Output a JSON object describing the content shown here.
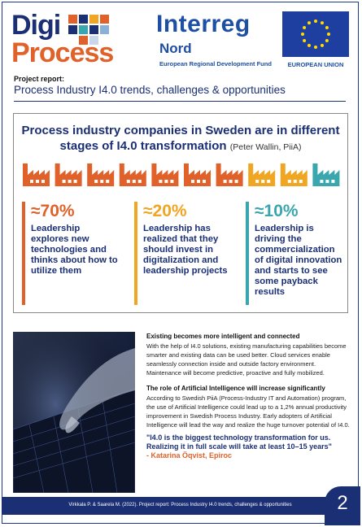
{
  "header": {
    "digi_word1": "Digi",
    "digi_word2": "Process",
    "interreg_word": "Interreg",
    "interreg_region": "Nord",
    "interreg_fund": "European Regional Development Fund",
    "eu_label": "EUROPEAN UNION"
  },
  "project_label": "Project report:",
  "report_title": "Process Industry I4.0 trends, challenges & opportunities",
  "main": {
    "headline": "Process industry companies in Sweden are in different stages of I4.0 transformation",
    "attribution": "(Peter Wallin, PiiA)",
    "factory_colors": [
      "#e0612a",
      "#e0612a",
      "#e0612a",
      "#e0612a",
      "#e0612a",
      "#e0612a",
      "#e0612a",
      "#f0a623",
      "#f0a623",
      "#3aa6ae"
    ],
    "stats": [
      {
        "percent": "≈70%",
        "color": "#e0612a",
        "text": "Leadership explores new technologies and thinks about how to utilize them"
      },
      {
        "percent": "≈20%",
        "color": "#f0a623",
        "text": "Leadership has realized that they should invest in digitalization and leadership projects"
      },
      {
        "percent": "≈10%",
        "color": "#3aa6ae",
        "text": "Leadership is driving the commercialization of digital innovation and starts to see some payback results"
      }
    ]
  },
  "sections": [
    {
      "heading": "Existing becomes more intelligent and connected",
      "body": "With the help of I4.0 solutions, existing manufacturing capabilities become smarter and existing data can be used better. Cloud services enable seamlessly connection inside and outside factory environment. Maintenance will become predictive, proactive and fully mobilized."
    },
    {
      "heading": "The role of Artificial Intelligence will increase significantly",
      "body": "According to Swedish PiiA (Process-Industry IT and Automation) program, the use of Artificial Intelligence could lead up to a 1,2% annual productivity improvement in Swedish Process Industry. Early adopters of Artificial Intelligence will lead the way and realize the huge turnover potential of I4.0."
    }
  ],
  "quote": {
    "text": "\"I4.0 is the biggest technology transformation for us. Realizing it in full scale will take at least 10–15 years\"",
    "author": "- Katarina Öqvist, Epiroc"
  },
  "footer": {
    "citation": "Virkkala P. & Saarela M. (2022). Project report: Process Industry I4.0 trends, challenges & opportunities",
    "page_number": "2"
  }
}
